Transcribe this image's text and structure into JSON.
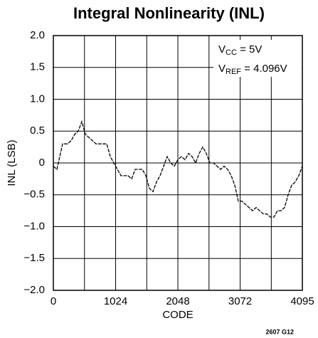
{
  "chart_data": {
    "type": "line",
    "title": "Integral Nonlinearity (INL)",
    "xlabel": "CODE",
    "ylabel": "INL (LSB)",
    "annotations": [
      [
        "V",
        "CC",
        " = 5V"
      ],
      [
        "V",
        "REF",
        " = 4.096V"
      ]
    ],
    "footnote": "2607 G12",
    "x": [
      0,
      59,
      152,
      234,
      293,
      351,
      410,
      468,
      527,
      585,
      702,
      819,
      878,
      936,
      995,
      1053,
      1112,
      1170,
      1229,
      1287,
      1346,
      1463,
      1521,
      1580,
      1638,
      1697,
      1755,
      1814,
      1872,
      1931,
      1989,
      2048,
      2106,
      2165,
      2223,
      2282,
      2340,
      2399,
      2457,
      2516,
      2574,
      2633,
      2691,
      2750,
      2808,
      2867,
      2925,
      2984,
      3042,
      3101,
      3159,
      3218,
      3276,
      3335,
      3393,
      3452,
      3510,
      3569,
      3627,
      3686,
      3744,
      3803,
      3861,
      3920,
      3978,
      4037,
      4095
    ],
    "series": [
      {
        "name": "INL",
        "color": "#000000",
        "values": [
          -0.05,
          -0.1,
          0.3,
          0.3,
          0.35,
          0.45,
          0.5,
          0.65,
          0.45,
          0.4,
          0.3,
          0.3,
          0.3,
          0.1,
          0,
          -0.1,
          -0.2,
          -0.2,
          -0.2,
          -0.25,
          -0.1,
          -0.1,
          -0.2,
          -0.4,
          -0.45,
          -0.3,
          -0.2,
          -0.05,
          0.1,
          0,
          -0.05,
          0.05,
          0.1,
          0.05,
          0.15,
          0.1,
          0,
          0.15,
          0.25,
          0.15,
          0,
          0,
          -0.05,
          -0.1,
          -0.05,
          -0.1,
          -0.2,
          -0.35,
          -0.6,
          -0.6,
          -0.65,
          -0.7,
          -0.75,
          -0.7,
          -0.75,
          -0.8,
          -0.8,
          -0.85,
          -0.85,
          -0.75,
          -0.75,
          -0.7,
          -0.5,
          -0.35,
          -0.3,
          -0.2,
          -0.05
        ]
      }
    ],
    "xlim": [
      0,
      4095
    ],
    "xticks": [
      0,
      1024,
      2048,
      3072,
      4095
    ],
    "xminorticks": [
      512,
      1536,
      2560,
      3584
    ],
    "ylim": [
      -2,
      2
    ],
    "yticks": [
      {
        "value": 2,
        "label": "2.0"
      },
      1.5,
      {
        "value": 1,
        "label": "1.0"
      },
      0.5,
      0,
      {
        "value": -0.5,
        "label": "−0.5"
      },
      {
        "value": -1,
        "label": "−1.0"
      },
      {
        "value": -1.5,
        "label": "−1.5"
      },
      {
        "value": -2,
        "label": "−2.0"
      }
    ],
    "grid": true
  }
}
